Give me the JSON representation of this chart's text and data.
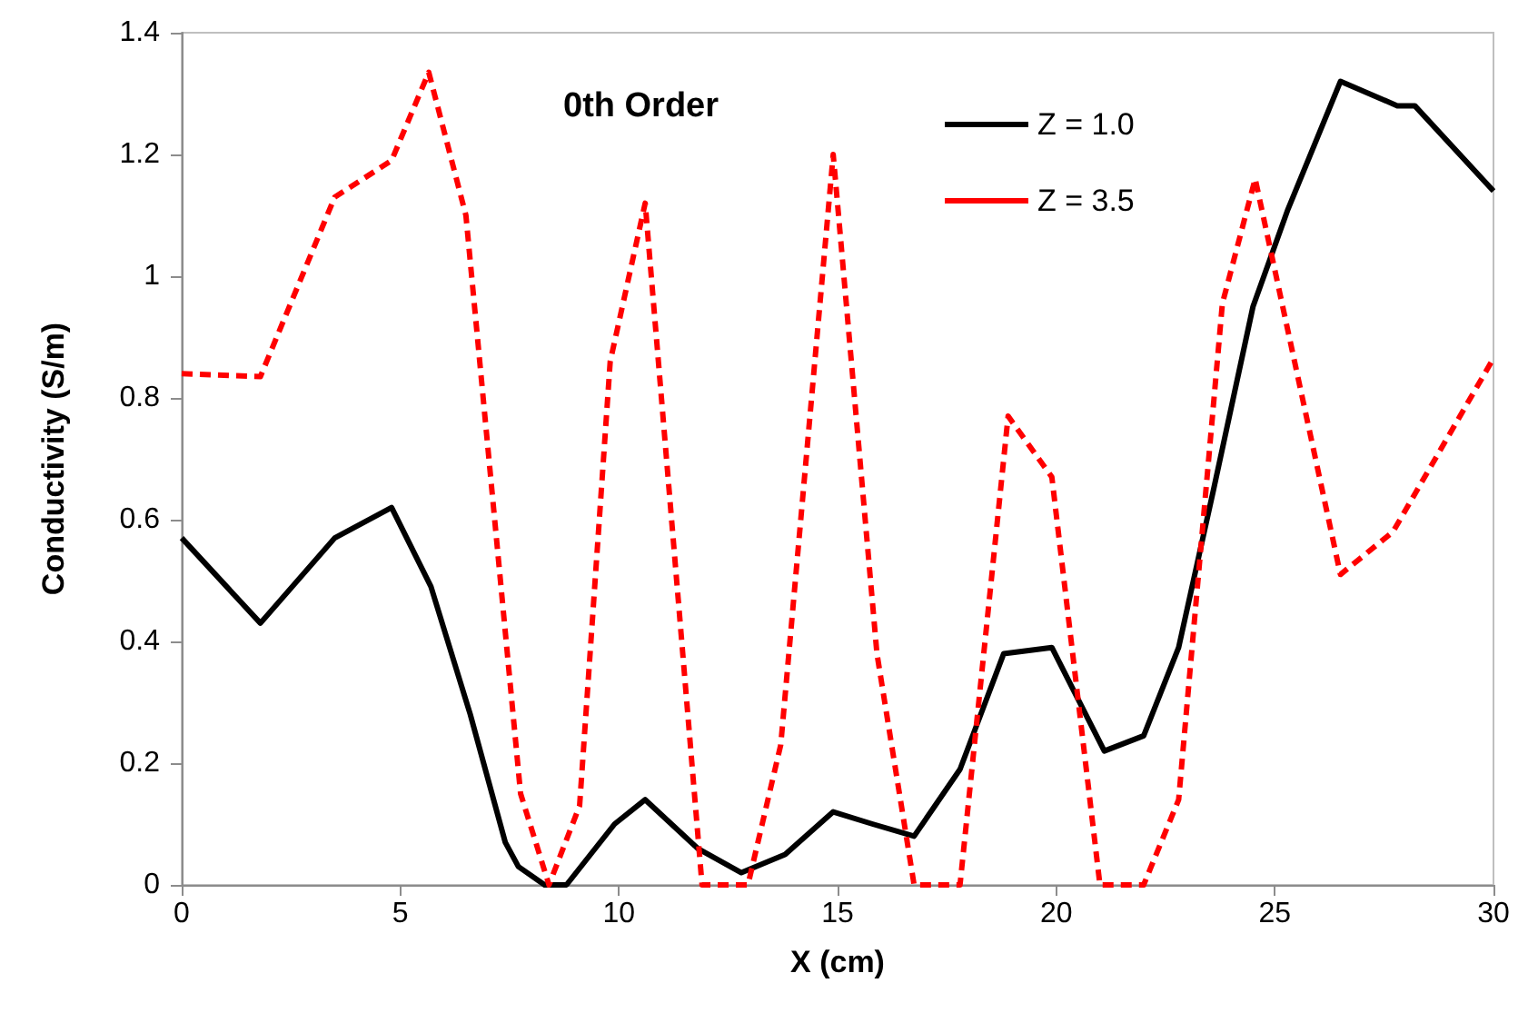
{
  "chart_data": {
    "type": "line",
    "title": "0th Order",
    "xlabel": "X (cm)",
    "ylabel": "Conductivity (S/m)",
    "xlim": [
      0,
      30
    ],
    "xticks": [
      0,
      5,
      10,
      15,
      20,
      25,
      30
    ],
    "ylim": [
      0,
      1.4
    ],
    "yticks": [
      0,
      0.2,
      0.4,
      0.6,
      0.8,
      1,
      1.2,
      1.4
    ],
    "grid": false,
    "legend": "top right",
    "marker": "none",
    "series": [
      {
        "name": "Z = 1.0",
        "color": "#000000",
        "line_style": "solid",
        "x": [
          0,
          1.8,
          3.5,
          4.8,
          5.7,
          6.6,
          7.4,
          7.7,
          8.3,
          8.8,
          9.9,
          10.6,
          11.8,
          12.8,
          13.8,
          14.9,
          15.8,
          16.75,
          17.8,
          18.8,
          19.9,
          21.1,
          22.0,
          22.8,
          23.6,
          24.5,
          25.3,
          26.5,
          27.8,
          28.2,
          30
        ],
        "values": [
          0.57,
          0.43,
          0.57,
          0.62,
          0.49,
          0.28,
          0.07,
          0.03,
          0,
          0,
          0.1,
          0.14,
          0.06,
          0.02,
          0.05,
          0.12,
          0.1,
          0.08,
          0.19,
          0.38,
          0.39,
          0.22,
          0.245,
          0.39,
          0.65,
          0.95,
          1.11,
          1.32,
          1.28,
          1.28,
          1.14
        ]
      },
      {
        "name": "Z = 3.5",
        "color": "#ff0000",
        "line_style": "dashed",
        "x": [
          0,
          1.8,
          3.5,
          4.8,
          5.65,
          6.5,
          7.75,
          8.4,
          9.1,
          9.8,
          10.6,
          11.9,
          12.95,
          13.7,
          14.9,
          15.9,
          16.75,
          17.8,
          18.9,
          19.9,
          21.0,
          22.0,
          22.8,
          23.8,
          24.55,
          25.3,
          26.5,
          27.7,
          30
        ],
        "values": [
          0.84,
          0.835,
          1.13,
          1.19,
          1.335,
          1.1,
          0.15,
          0,
          0.13,
          0.86,
          1.12,
          0,
          0,
          0.23,
          1.2,
          0.38,
          0,
          0,
          0.77,
          0.67,
          0,
          0,
          0.14,
          0.955,
          1.16,
          0.91,
          0.51,
          0.58,
          0.865
        ]
      }
    ]
  }
}
